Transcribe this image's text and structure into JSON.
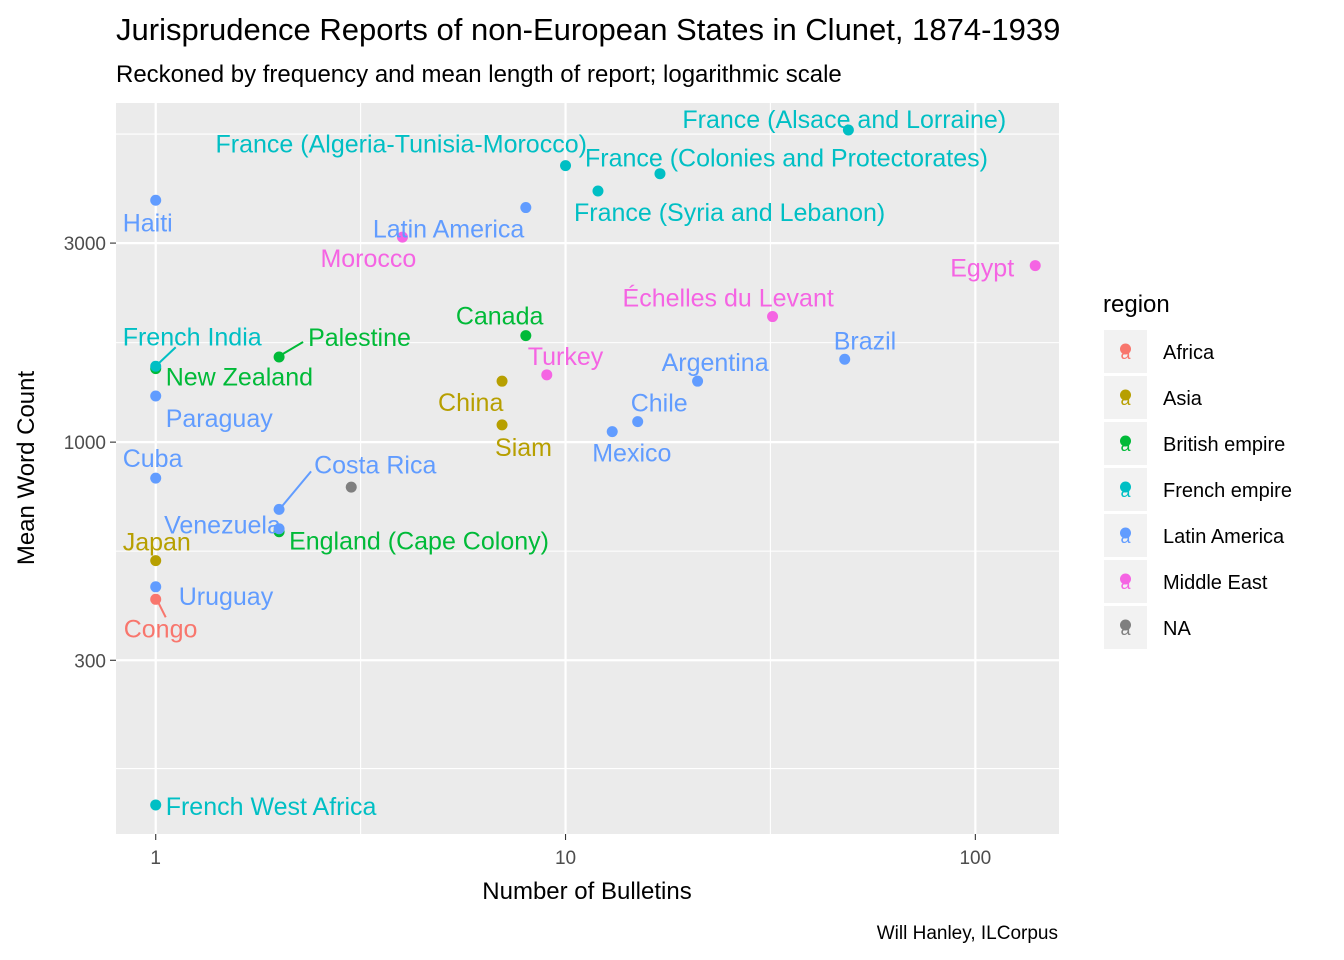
{
  "chart_data": {
    "type": "scatter",
    "title": "Jurisprudence Reports of non-European States in Clunet, 1874-1939",
    "subtitle": "Reckoned by frequency and mean length of report; logarithmic scale",
    "xlabel": "Number of Bulletins",
    "ylabel": "Mean Word Count",
    "caption": "Will Hanley, ILCorpus",
    "x_scale": "log10",
    "y_scale": "log10",
    "xlim": [
      0.8,
      160
    ],
    "ylim": [
      115,
      6500
    ],
    "x_ticks": [
      {
        "value": 1,
        "label": "1"
      },
      {
        "value": 10,
        "label": "10"
      },
      {
        "value": 100,
        "label": "100"
      }
    ],
    "y_ticks": [
      {
        "value": 300,
        "label": "300"
      },
      {
        "value": 1000,
        "label": "1000"
      },
      {
        "value": 3000,
        "label": "3000"
      }
    ],
    "grid": true,
    "legend": {
      "title": "region",
      "position": "right",
      "glyph": "a",
      "entries": [
        {
          "name": "Africa",
          "color": "#F8766D"
        },
        {
          "name": "Asia",
          "color": "#B79F00"
        },
        {
          "name": "British empire",
          "color": "#00BA38"
        },
        {
          "name": "French empire",
          "color": "#00BFC4"
        },
        {
          "name": "Latin America",
          "color": "#619CFF"
        },
        {
          "name": "Middle East",
          "color": "#F564E3"
        },
        {
          "name": "NA",
          "color": "#7F7F7F"
        }
      ]
    },
    "points": [
      {
        "label": "Congo",
        "x": 1,
        "y": 420,
        "region": "Africa"
      },
      {
        "label": "Japan",
        "x": 1,
        "y": 520,
        "region": "Asia"
      },
      {
        "label": "China",
        "x": 7,
        "y": 1400,
        "region": "Asia"
      },
      {
        "label": "Siam",
        "x": 7,
        "y": 1100,
        "region": "Asia"
      },
      {
        "label": "Palestine",
        "x": 2,
        "y": 1600,
        "region": "British empire"
      },
      {
        "label": "New Zealand",
        "x": 1,
        "y": 1500,
        "region": "British empire"
      },
      {
        "label": "Canada",
        "x": 8,
        "y": 1800,
        "region": "British empire"
      },
      {
        "label": "England (Cape Colony)",
        "x": 2,
        "y": 610,
        "region": "British empire"
      },
      {
        "label": "French India",
        "x": 1,
        "y": 1520,
        "region": "French empire"
      },
      {
        "label": "France (Alsace and Lorraine)",
        "x": 49,
        "y": 5600,
        "region": "French empire"
      },
      {
        "label": "France (Algeria-Tunisia-Morocco)",
        "x": 10,
        "y": 4600,
        "region": "French empire"
      },
      {
        "label": "France (Colonies and Protectorates)",
        "x": 17,
        "y": 4400,
        "region": "French empire"
      },
      {
        "label": "France (Syria and Lebanon)",
        "x": 12,
        "y": 4000,
        "region": "French empire"
      },
      {
        "label": "French West Africa",
        "x": 1,
        "y": 135,
        "region": "French empire"
      },
      {
        "label": "Haiti",
        "x": 1,
        "y": 3800,
        "region": "Latin America"
      },
      {
        "label": "Latin America",
        "x": 8,
        "y": 3650,
        "region": "Latin America"
      },
      {
        "label": "Paraguay",
        "x": 1,
        "y": 1290,
        "region": "Latin America"
      },
      {
        "label": "Cuba",
        "x": 1,
        "y": 820,
        "region": "Latin America"
      },
      {
        "label": "Costa Rica",
        "x": 2,
        "y": 690,
        "region": "Latin America"
      },
      {
        "label": "Venezuela",
        "x": 2,
        "y": 620,
        "region": "Latin America"
      },
      {
        "label": "Uruguay",
        "x": 1,
        "y": 450,
        "region": "Latin America"
      },
      {
        "label": "Argentina",
        "x": 21,
        "y": 1400,
        "region": "Latin America"
      },
      {
        "label": "Brazil",
        "x": 48,
        "y": 1580,
        "region": "Latin America"
      },
      {
        "label": "Chile",
        "x": 15,
        "y": 1120,
        "region": "Latin America"
      },
      {
        "label": "Mexico",
        "x": 13,
        "y": 1060,
        "region": "Latin America"
      },
      {
        "label": "Morocco",
        "x": 4,
        "y": 3100,
        "region": "Middle East"
      },
      {
        "label": "Egypt",
        "x": 140,
        "y": 2650,
        "region": "Middle East"
      },
      {
        "label": "Échelles du Levant",
        "x": 32,
        "y": 2000,
        "region": "Middle East"
      },
      {
        "label": "Turkey",
        "x": 9,
        "y": 1450,
        "region": "Middle East"
      },
      {
        "label": null,
        "x": 3,
        "y": 780,
        "region": "NA"
      }
    ]
  }
}
